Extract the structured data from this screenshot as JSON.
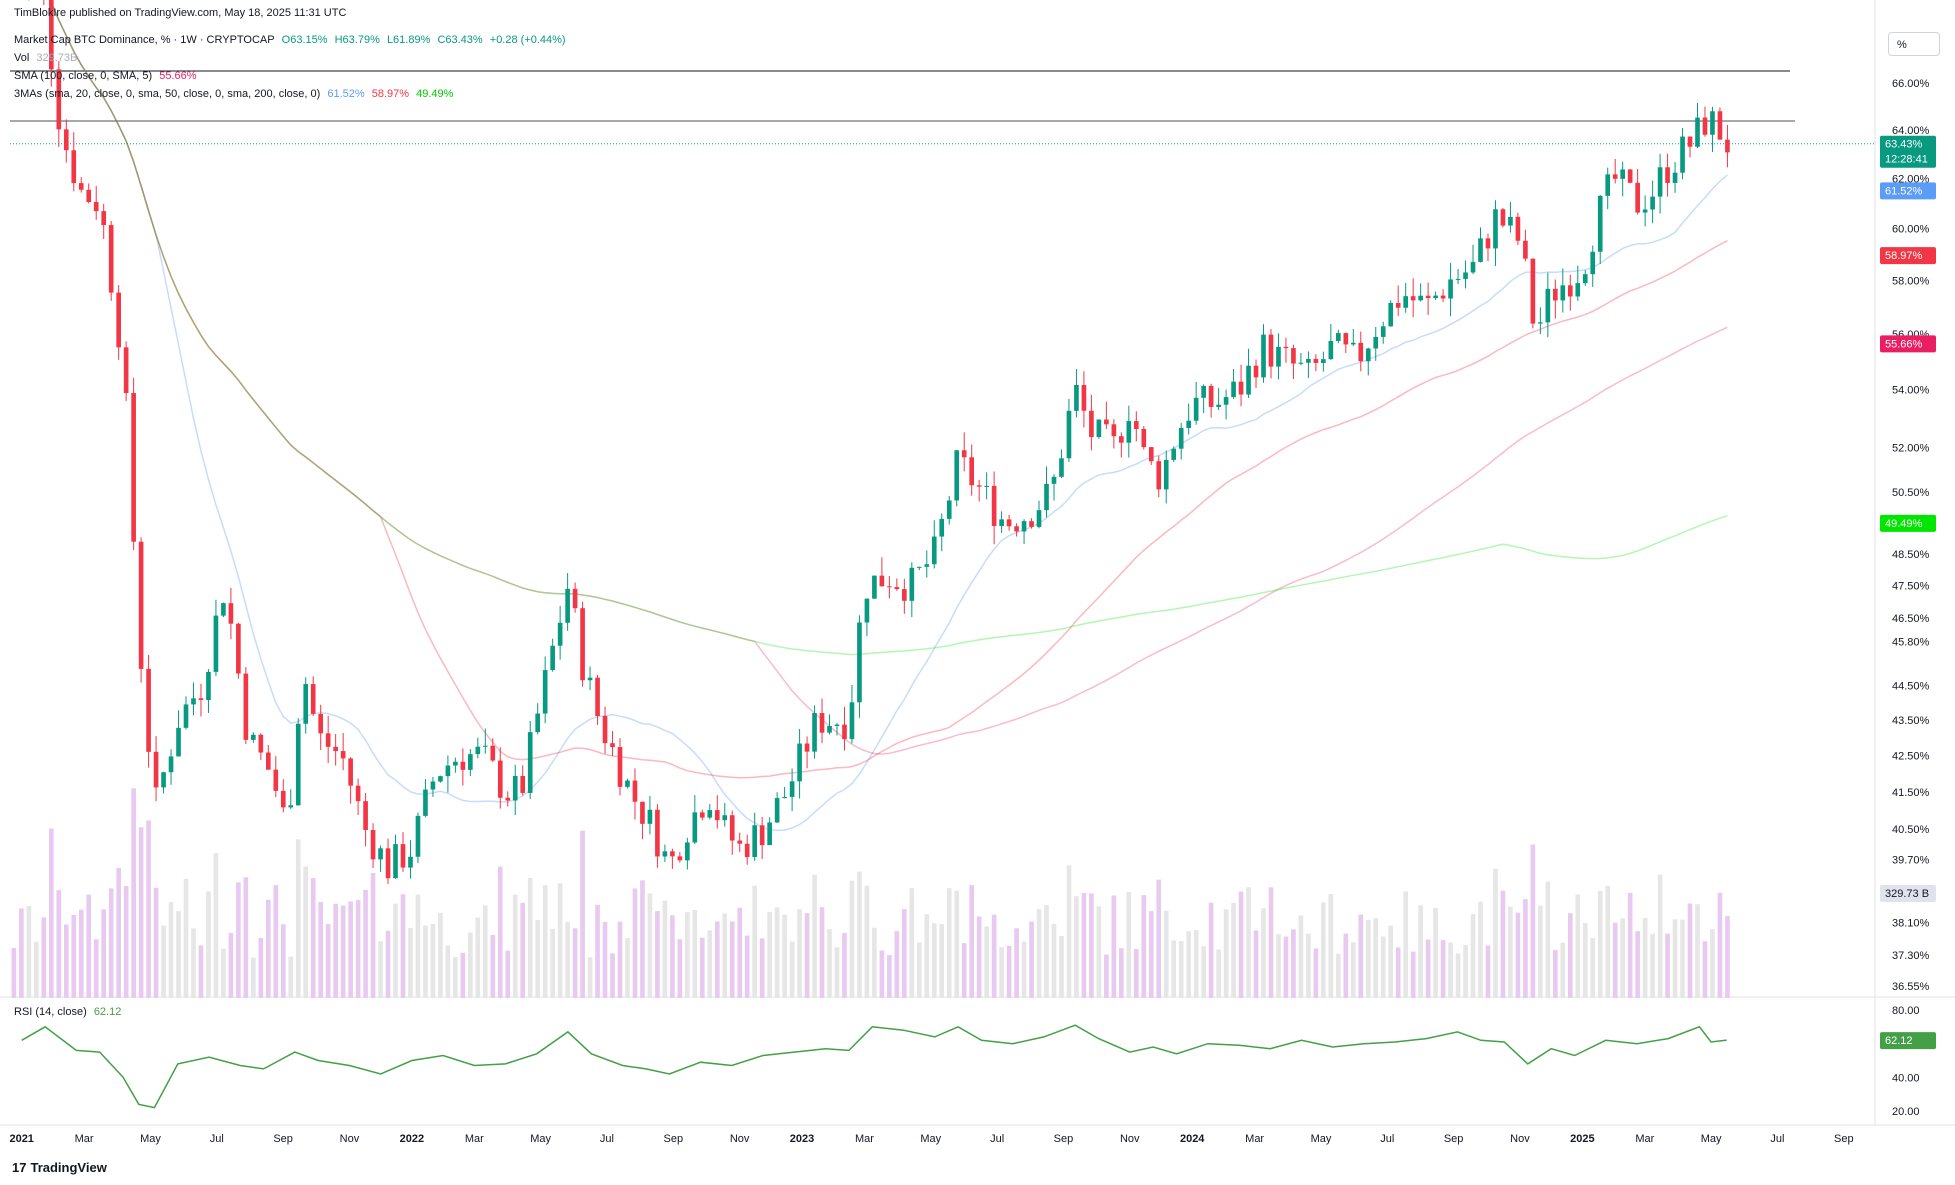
{
  "header": {
    "publisher": "TimBlokIre published on TradingView.com, May 18, 2025 11:31 UTC",
    "symbol": "Market Cap BTC Dominance, % · 1W · CRYPTOCAP",
    "open": "O63.15%",
    "high": "H63.79%",
    "low": "L61.89%",
    "close": "C63.43%",
    "change": "+0.28 (+0.44%)",
    "vol_label": "Vol",
    "vol_value": "329.73B",
    "sma_label": "SMA (100, close, 0, SMA, 5)",
    "sma_value": "55.66%",
    "mas_label": "3MAs (sma, 20, close, 0, sma, 50, close, 0, sma, 200, close, 0)",
    "mas_v1": "61.52%",
    "mas_v2": "58.97%",
    "mas_v3": "49.49%",
    "scale_button": "%"
  },
  "rsi": {
    "label": "RSI (14, close)",
    "value": "62.12",
    "ticks": [
      "80.00",
      "40.00",
      "20.00"
    ],
    "tag": "62.12"
  },
  "price_tags": {
    "last": "63.43%",
    "countdown": "12:28:41",
    "ma20": "61.52%",
    "ma50": "58.97%",
    "sma100": "55.66%",
    "ma200": "49.49%",
    "volume": "329.73 B"
  },
  "colors": {
    "up": "#089981",
    "down": "#f23645",
    "ma20": "#5b9cf6",
    "ma50": "#f23645",
    "sma100": "#e91e63",
    "ma200": "#00e600",
    "rsi": "#43a047"
  },
  "logo": "TradingView",
  "chart_data": {
    "type": "candlestick",
    "title": "Market Cap BTC Dominance, % · 1W · CRYPTOCAP",
    "y_unit": "%",
    "y_scale": "log",
    "y_ticks": [
      "66.00%",
      "64.00%",
      "62.00%",
      "60.00%",
      "58.00%",
      "56.00%",
      "54.00%",
      "52.00%",
      "50.50%",
      "48.50%",
      "47.50%",
      "46.50%",
      "45.80%",
      "44.50%",
      "43.50%",
      "42.50%",
      "41.50%",
      "40.50%",
      "39.70%",
      "38.10%",
      "37.30%",
      "36.55%"
    ],
    "x_ticks": [
      "2021",
      "Mar",
      "May",
      "Jul",
      "Sep",
      "Nov",
      "2022",
      "Mar",
      "May",
      "Jul",
      "Sep",
      "Nov",
      "2023",
      "Mar",
      "May",
      "Jul",
      "Sep",
      "Nov",
      "2024",
      "Mar",
      "May",
      "Jul",
      "Sep",
      "Nov",
      "2025",
      "Mar",
      "May",
      "Jul",
      "Sep"
    ],
    "close_path": [
      [
        2021.0,
        70.0
      ],
      [
        2021.05,
        70.5
      ],
      [
        2021.1,
        64.0
      ],
      [
        2021.15,
        61.5
      ],
      [
        2021.2,
        61.0
      ],
      [
        2021.26,
        55.0
      ],
      [
        2021.3,
        46.0
      ],
      [
        2021.34,
        41.0
      ],
      [
        2021.4,
        43.5
      ],
      [
        2021.46,
        44.5
      ],
      [
        2021.52,
        47.5
      ],
      [
        2021.58,
        43.0
      ],
      [
        2021.64,
        42.0
      ],
      [
        2021.68,
        40.5
      ],
      [
        2021.72,
        45.0
      ],
      [
        2021.76,
        43.0
      ],
      [
        2021.82,
        42.5
      ],
      [
        2021.88,
        40.5
      ],
      [
        2021.94,
        39.5
      ],
      [
        2022.0,
        40.0
      ],
      [
        2022.06,
        42.0
      ],
      [
        2022.12,
        42.5
      ],
      [
        2022.18,
        42.5
      ],
      [
        2022.24,
        41.5
      ],
      [
        2022.28,
        41.5
      ],
      [
        2022.34,
        44.5
      ],
      [
        2022.4,
        47.5
      ],
      [
        2022.44,
        45.0
      ],
      [
        2022.48,
        43.5
      ],
      [
        2022.52,
        42.5
      ],
      [
        2022.56,
        41.5
      ],
      [
        2022.62,
        40.5
      ],
      [
        2022.66,
        39.5
      ],
      [
        2022.7,
        40.5
      ],
      [
        2022.76,
        41.5
      ],
      [
        2022.8,
        40.5
      ],
      [
        2022.84,
        40.0
      ],
      [
        2022.9,
        40.5
      ],
      [
        2022.96,
        41.5
      ],
      [
        2023.0,
        42.5
      ],
      [
        2023.04,
        43.5
      ],
      [
        2023.08,
        43.5
      ],
      [
        2023.12,
        43.5
      ],
      [
        2023.16,
        47.5
      ],
      [
        2023.22,
        47.8
      ],
      [
        2023.28,
        47.5
      ],
      [
        2023.34,
        48.5
      ],
      [
        2023.4,
        51.5
      ],
      [
        2023.46,
        50.5
      ],
      [
        2023.52,
        49.5
      ],
      [
        2023.58,
        49.8
      ],
      [
        2023.64,
        50.5
      ],
      [
        2023.7,
        54.0
      ],
      [
        2023.74,
        52.5
      ],
      [
        2023.8,
        52.0
      ],
      [
        2023.84,
        53.5
      ],
      [
        2023.88,
        51.5
      ],
      [
        2023.92,
        51.0
      ],
      [
        2023.96,
        52.5
      ],
      [
        2024.0,
        53.5
      ],
      [
        2024.06,
        53.5
      ],
      [
        2024.12,
        54.0
      ],
      [
        2024.18,
        55.5
      ],
      [
        2024.24,
        55.0
      ],
      [
        2024.3,
        54.5
      ],
      [
        2024.36,
        55.5
      ],
      [
        2024.42,
        55.0
      ],
      [
        2024.48,
        56.5
      ],
      [
        2024.54,
        57.5
      ],
      [
        2024.6,
        57.0
      ],
      [
        2024.66,
        58.0
      ],
      [
        2024.72,
        58.5
      ],
      [
        2024.78,
        60.5
      ],
      [
        2024.84,
        59.5
      ],
      [
        2024.88,
        56.0
      ],
      [
        2024.92,
        57.5
      ],
      [
        2024.96,
        58.0
      ],
      [
        2025.0,
        58.5
      ],
      [
        2025.04,
        60.5
      ],
      [
        2025.08,
        62.0
      ],
      [
        2025.14,
        61.0
      ],
      [
        2025.18,
        61.5
      ],
      [
        2025.22,
        62.5
      ],
      [
        2025.28,
        63.5
      ],
      [
        2025.32,
        64.5
      ],
      [
        2025.35,
        64.0
      ],
      [
        2025.37,
        63.43
      ]
    ],
    "series": [
      {
        "name": "3MAs 20 (sma)",
        "last": 61.52
      },
      {
        "name": "3MAs 50 (sma)",
        "last": 58.97
      },
      {
        "name": "SMA (100)",
        "last": 55.66
      },
      {
        "name": "3MAs 200 (sma)",
        "last": 49.49
      }
    ],
    "rsi_path": [
      [
        2021.0,
        62
      ],
      [
        2021.06,
        70
      ],
      [
        2021.14,
        56
      ],
      [
        2021.2,
        55
      ],
      [
        2021.26,
        40
      ],
      [
        2021.3,
        24
      ],
      [
        2021.34,
        22
      ],
      [
        2021.4,
        48
      ],
      [
        2021.48,
        52
      ],
      [
        2021.56,
        47
      ],
      [
        2021.62,
        45
      ],
      [
        2021.7,
        55
      ],
      [
        2021.76,
        50
      ],
      [
        2021.84,
        47
      ],
      [
        2021.92,
        42
      ],
      [
        2022.0,
        50
      ],
      [
        2022.08,
        53
      ],
      [
        2022.16,
        47
      ],
      [
        2022.24,
        48
      ],
      [
        2022.32,
        54
      ],
      [
        2022.4,
        67
      ],
      [
        2022.46,
        54
      ],
      [
        2022.54,
        47
      ],
      [
        2022.6,
        45
      ],
      [
        2022.66,
        42
      ],
      [
        2022.74,
        49
      ],
      [
        2022.82,
        47
      ],
      [
        2022.9,
        53
      ],
      [
        2022.98,
        55
      ],
      [
        2023.06,
        57
      ],
      [
        2023.12,
        56
      ],
      [
        2023.18,
        70
      ],
      [
        2023.26,
        68
      ],
      [
        2023.34,
        64
      ],
      [
        2023.4,
        70
      ],
      [
        2023.46,
        62
      ],
      [
        2023.54,
        60
      ],
      [
        2023.62,
        64
      ],
      [
        2023.7,
        71
      ],
      [
        2023.76,
        63
      ],
      [
        2023.84,
        55
      ],
      [
        2023.9,
        58
      ],
      [
        2023.96,
        54
      ],
      [
        2024.04,
        60
      ],
      [
        2024.12,
        59
      ],
      [
        2024.2,
        57
      ],
      [
        2024.28,
        62
      ],
      [
        2024.36,
        58
      ],
      [
        2024.44,
        60
      ],
      [
        2024.52,
        61
      ],
      [
        2024.6,
        63
      ],
      [
        2024.68,
        67
      ],
      [
        2024.74,
        62
      ],
      [
        2024.8,
        61
      ],
      [
        2024.86,
        48
      ],
      [
        2024.92,
        57
      ],
      [
        2024.98,
        53
      ],
      [
        2025.06,
        62
      ],
      [
        2025.14,
        60
      ],
      [
        2025.22,
        63
      ],
      [
        2025.3,
        70
      ],
      [
        2025.33,
        61
      ],
      [
        2025.37,
        62.12
      ]
    ],
    "legend_position": "top-left",
    "grid": false
  }
}
